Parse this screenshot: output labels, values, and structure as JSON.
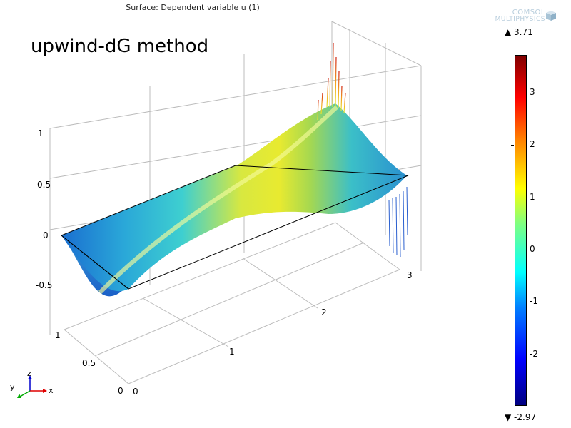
{
  "title": "Surface: Dependent variable u (1)",
  "annotation": "upwind-dG method",
  "logo": {
    "line1": "COMSOL",
    "line2": "MULTIPHYSICS",
    "color": "#b7cddc"
  },
  "chart_data": {
    "type": "surface",
    "title": "Surface: Dependent variable u (1)",
    "x_axis": {
      "ticks": [
        "0",
        "1",
        "2",
        "3"
      ],
      "range": [
        0,
        3
      ]
    },
    "y_axis": {
      "ticks": [
        "0",
        "0.5",
        "1"
      ],
      "range": [
        0,
        1
      ]
    },
    "z_axis": {
      "ticks": [
        "-0.5",
        "0",
        "0.5",
        "1"
      ],
      "range": [
        -0.5,
        1
      ]
    },
    "axis_labels": {
      "x": "x",
      "y": "y",
      "z": "z"
    },
    "colorbar": {
      "max_label": "▲ 3.71",
      "min_label": "▼ -2.97",
      "min": -2.97,
      "max": 3.71,
      "ticks": [
        "3",
        "2",
        "1",
        "0",
        "-1",
        "-2"
      ],
      "tick_values": [
        3,
        2,
        1,
        0,
        -1,
        -2
      ],
      "colormap": "rainbow"
    },
    "surface_description_values": {
      "max": 3.71,
      "min": -2.97
    }
  },
  "colors": {
    "axis": "#000000",
    "grid": "#bbbbbb",
    "x_arrow": "#e00000",
    "y_arrow": "#00aa00",
    "z_arrow": "#0000cc"
  }
}
